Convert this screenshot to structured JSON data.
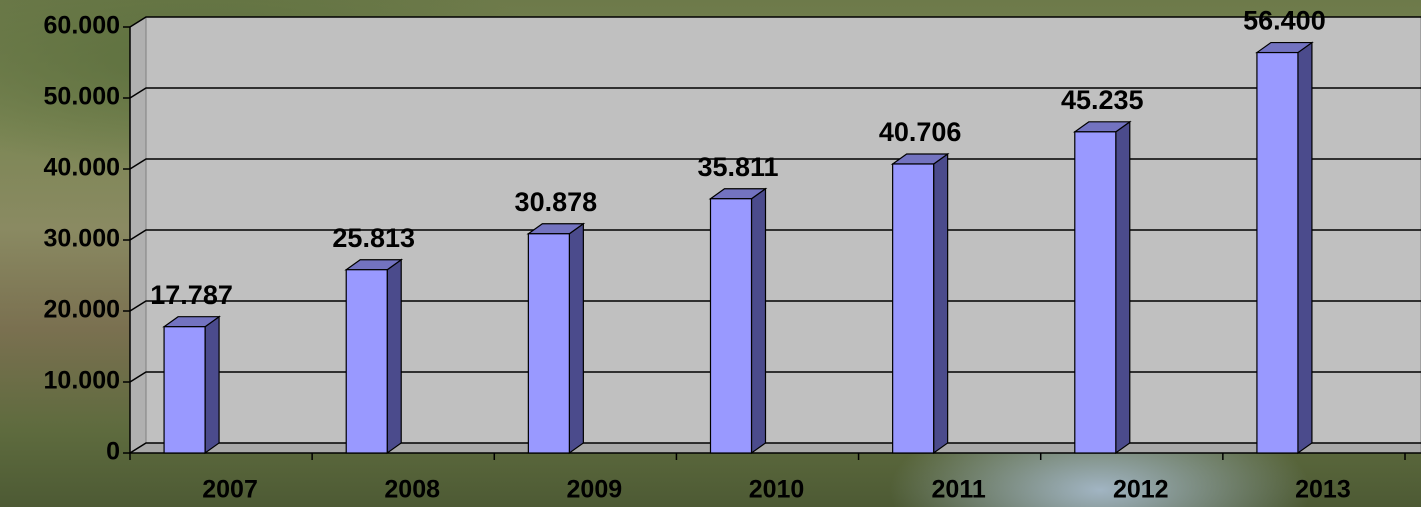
{
  "chart_data": {
    "type": "bar3d",
    "categories": [
      "2007",
      "2008",
      "2009",
      "2010",
      "2011",
      "2012",
      "2013"
    ],
    "values": [
      17787,
      25813,
      30878,
      35811,
      40706,
      45235,
      56400
    ],
    "value_labels": [
      "17.787",
      "25.813",
      "30.878",
      "35.811",
      "40.706",
      "45.235",
      "56.400"
    ],
    "color": "#9999ff",
    "ylim": [
      0,
      60000
    ],
    "yticks": [
      0,
      {
        "value": 10000,
        "label": "10.000"
      },
      {
        "value": 20000,
        "label": "20.000"
      },
      {
        "value": 30000,
        "label": "30.000"
      },
      {
        "value": 40000,
        "label": "40.000"
      },
      {
        "value": 50000,
        "label": "50.000"
      },
      {
        "value": 60000,
        "label": "60.000"
      }
    ],
    "grid": true
  }
}
